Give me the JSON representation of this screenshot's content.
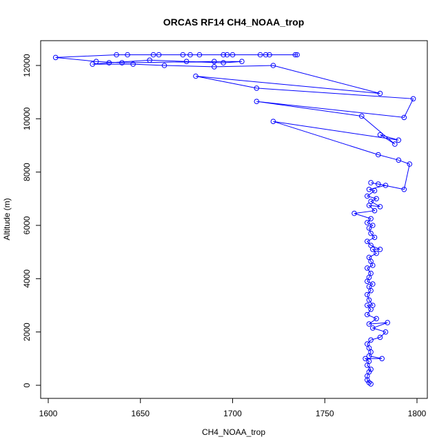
{
  "chart_data": {
    "type": "line",
    "title": "ORCAS RF14 CH4_NOAA_trop",
    "xlabel": "CH4_NOAA_trop",
    "ylabel": "Altitude (m)",
    "xlim": [
      1600,
      1800
    ],
    "ylim": [
      0,
      12500
    ],
    "xticks": [
      1600,
      1650,
      1700,
      1750,
      1800
    ],
    "yticks": [
      0,
      2000,
      4000,
      6000,
      8000,
      10000,
      12000
    ],
    "series": [
      {
        "color": "#0000ff",
        "marker": "open-circle",
        "points": [
          [
            1775,
            50
          ],
          [
            1774,
            100
          ],
          [
            1773,
            200
          ],
          [
            1773,
            350
          ],
          [
            1774,
            500
          ],
          [
            1775,
            600
          ],
          [
            1773,
            750
          ],
          [
            1774,
            900
          ],
          [
            1772,
            1000
          ],
          [
            1781,
            1000
          ],
          [
            1774,
            1100
          ],
          [
            1775,
            1250
          ],
          [
            1774,
            1400
          ],
          [
            1773,
            1550
          ],
          [
            1775,
            1700
          ],
          [
            1780,
            1800
          ],
          [
            1783,
            2000
          ],
          [
            1776,
            2150
          ],
          [
            1784,
            2350
          ],
          [
            1774,
            2300
          ],
          [
            1778,
            2500
          ],
          [
            1773,
            2650
          ],
          [
            1775,
            2850
          ],
          [
            1773,
            3000
          ],
          [
            1776,
            3000
          ],
          [
            1774,
            3200
          ],
          [
            1773,
            3400
          ],
          [
            1775,
            3550
          ],
          [
            1774,
            3700
          ],
          [
            1776,
            3800
          ],
          [
            1773,
            3900
          ],
          [
            1774,
            4050
          ],
          [
            1775,
            4200
          ],
          [
            1773,
            4400
          ],
          [
            1776,
            4500
          ],
          [
            1775,
            4650
          ],
          [
            1774,
            4800
          ],
          [
            1778,
            4950
          ],
          [
            1776,
            5100
          ],
          [
            1780,
            5100
          ],
          [
            1775,
            5250
          ],
          [
            1773,
            5400
          ],
          [
            1777,
            5550
          ],
          [
            1775,
            5700
          ],
          [
            1774,
            5900
          ],
          [
            1776,
            6000
          ],
          [
            1773,
            6100
          ],
          [
            1775,
            6250
          ],
          [
            1766,
            6450
          ],
          [
            1777,
            6550
          ],
          [
            1774,
            6750
          ],
          [
            1780,
            6700
          ],
          [
            1775,
            6900
          ],
          [
            1778,
            7000
          ],
          [
            1773,
            7100
          ],
          [
            1777,
            7300
          ],
          [
            1774,
            7350
          ],
          [
            1783,
            7500
          ],
          [
            1775,
            7600
          ],
          [
            1779,
            7550
          ],
          [
            1793,
            7350
          ],
          [
            1796,
            8300
          ],
          [
            1790,
            8450
          ],
          [
            1779,
            8650
          ],
          [
            1722,
            9900
          ],
          [
            1790,
            9200
          ],
          [
            1780,
            9400
          ],
          [
            1788,
            9050
          ],
          [
            1770,
            10100
          ],
          [
            1713,
            10650
          ],
          [
            1793,
            10050
          ],
          [
            1798,
            10750
          ],
          [
            1713,
            11150
          ],
          [
            1680,
            11600
          ],
          [
            1780,
            10950
          ],
          [
            1722,
            12000
          ],
          [
            1690,
            11950
          ],
          [
            1663,
            12000
          ],
          [
            1646,
            12050
          ],
          [
            1624,
            12050
          ],
          [
            1633,
            12100
          ],
          [
            1655,
            12200
          ],
          [
            1675,
            12150
          ],
          [
            1695,
            12100
          ],
          [
            1705,
            12150
          ],
          [
            1690,
            12150
          ],
          [
            1640,
            12100
          ],
          [
            1626,
            12150
          ],
          [
            1604,
            12300
          ],
          [
            1637,
            12400
          ],
          [
            1657,
            12400
          ],
          [
            1677,
            12400
          ],
          [
            1697,
            12400
          ],
          [
            1715,
            12400
          ],
          [
            1735,
            12400
          ],
          [
            1720,
            12400
          ],
          [
            1700,
            12400
          ],
          [
            1682,
            12400
          ],
          [
            1660,
            12400
          ],
          [
            1643,
            12400
          ],
          [
            1673,
            12400
          ],
          [
            1695,
            12400
          ],
          [
            1718,
            12400
          ],
          [
            1734,
            12400
          ]
        ]
      }
    ]
  }
}
